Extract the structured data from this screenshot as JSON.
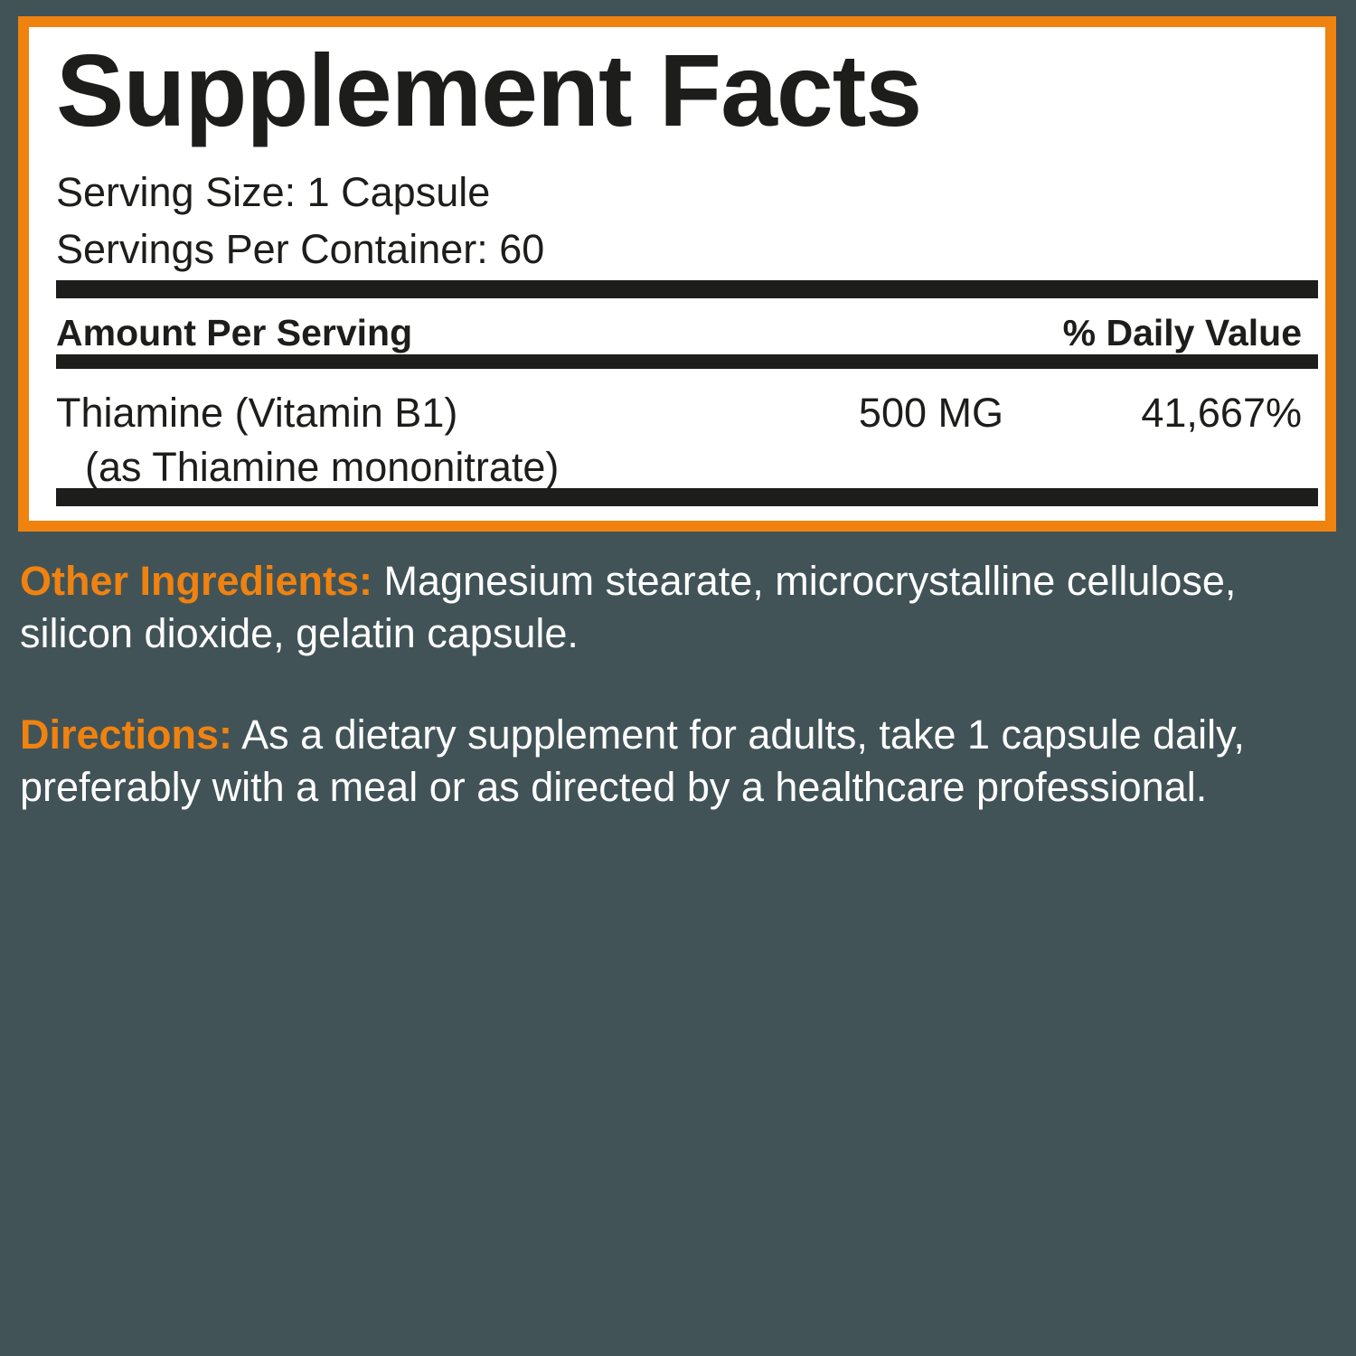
{
  "panel": {
    "title": "Supplement Facts",
    "serving_size": "Serving Size: 1 Capsule",
    "servings_per_container": "Servings Per Container: 60",
    "header_amount": "Amount Per Serving",
    "header_dv": "% Daily Value",
    "rows": [
      {
        "name": "Thiamine (Vitamin B1)",
        "sub": "(as Thiamine mononitrate)",
        "amount": "500 MG",
        "dv": "41,667%"
      }
    ]
  },
  "other_ingredients": {
    "label": "Other Ingredients:",
    "line1": " Magnesium stearate, microcrystalline cellulose,",
    "line2": "silicon dioxide, gelatin capsule."
  },
  "directions": {
    "label": "Directions:",
    "line1": " As a dietary supplement for adults, take 1 capsule daily,",
    "line2": "preferably with a meal or as directed by a healthcare professional."
  },
  "colors": {
    "accent": "#f0820f",
    "background": "#415357",
    "text_dark": "#1d1d1b"
  }
}
